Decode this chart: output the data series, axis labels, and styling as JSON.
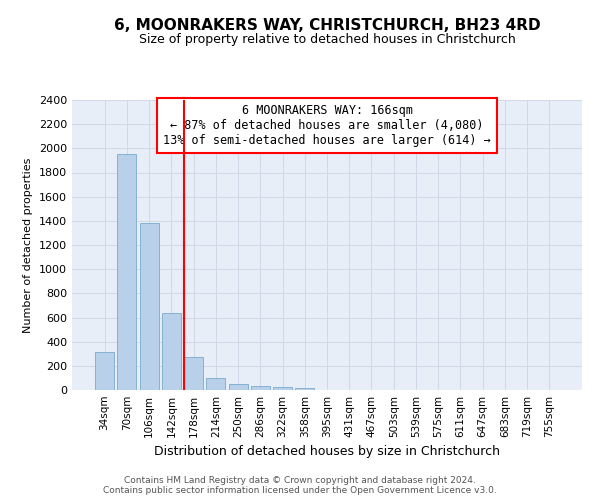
{
  "title": "6, MOONRAKERS WAY, CHRISTCHURCH, BH23 4RD",
  "subtitle": "Size of property relative to detached houses in Christchurch",
  "xlabel": "Distribution of detached houses by size in Christchurch",
  "ylabel": "Number of detached properties",
  "categories": [
    "34sqm",
    "70sqm",
    "106sqm",
    "142sqm",
    "178sqm",
    "214sqm",
    "250sqm",
    "286sqm",
    "322sqm",
    "358sqm",
    "395sqm",
    "431sqm",
    "467sqm",
    "503sqm",
    "539sqm",
    "575sqm",
    "611sqm",
    "647sqm",
    "683sqm",
    "719sqm",
    "755sqm"
  ],
  "values": [
    315,
    1950,
    1380,
    635,
    270,
    100,
    48,
    32,
    25,
    20,
    0,
    0,
    0,
    0,
    0,
    0,
    0,
    0,
    0,
    0,
    0
  ],
  "bar_color": "#b8d0ea",
  "bar_edge_color": "#7aabce",
  "grid_color": "#d0d8e8",
  "background_color": "#e8eef8",
  "annotation_text_line1": "6 MOONRAKERS WAY: 166sqm",
  "annotation_text_line2": "← 87% of detached houses are smaller (4,080)",
  "annotation_text_line3": "13% of semi-detached houses are larger (614) →",
  "annotation_box_color": "white",
  "annotation_box_edge_color": "red",
  "redline_x": 3.55,
  "ylim": [
    0,
    2400
  ],
  "yticks": [
    0,
    200,
    400,
    600,
    800,
    1000,
    1200,
    1400,
    1600,
    1800,
    2000,
    2200,
    2400
  ],
  "footer1": "Contains HM Land Registry data © Crown copyright and database right 2024.",
  "footer2": "Contains public sector information licensed under the Open Government Licence v3.0.",
  "title_fontsize": 11,
  "subtitle_fontsize": 9,
  "ylabel_fontsize": 8,
  "xlabel_fontsize": 9,
  "tick_fontsize": 8,
  "xtick_fontsize": 7.5,
  "annotation_fontsize": 8.5
}
